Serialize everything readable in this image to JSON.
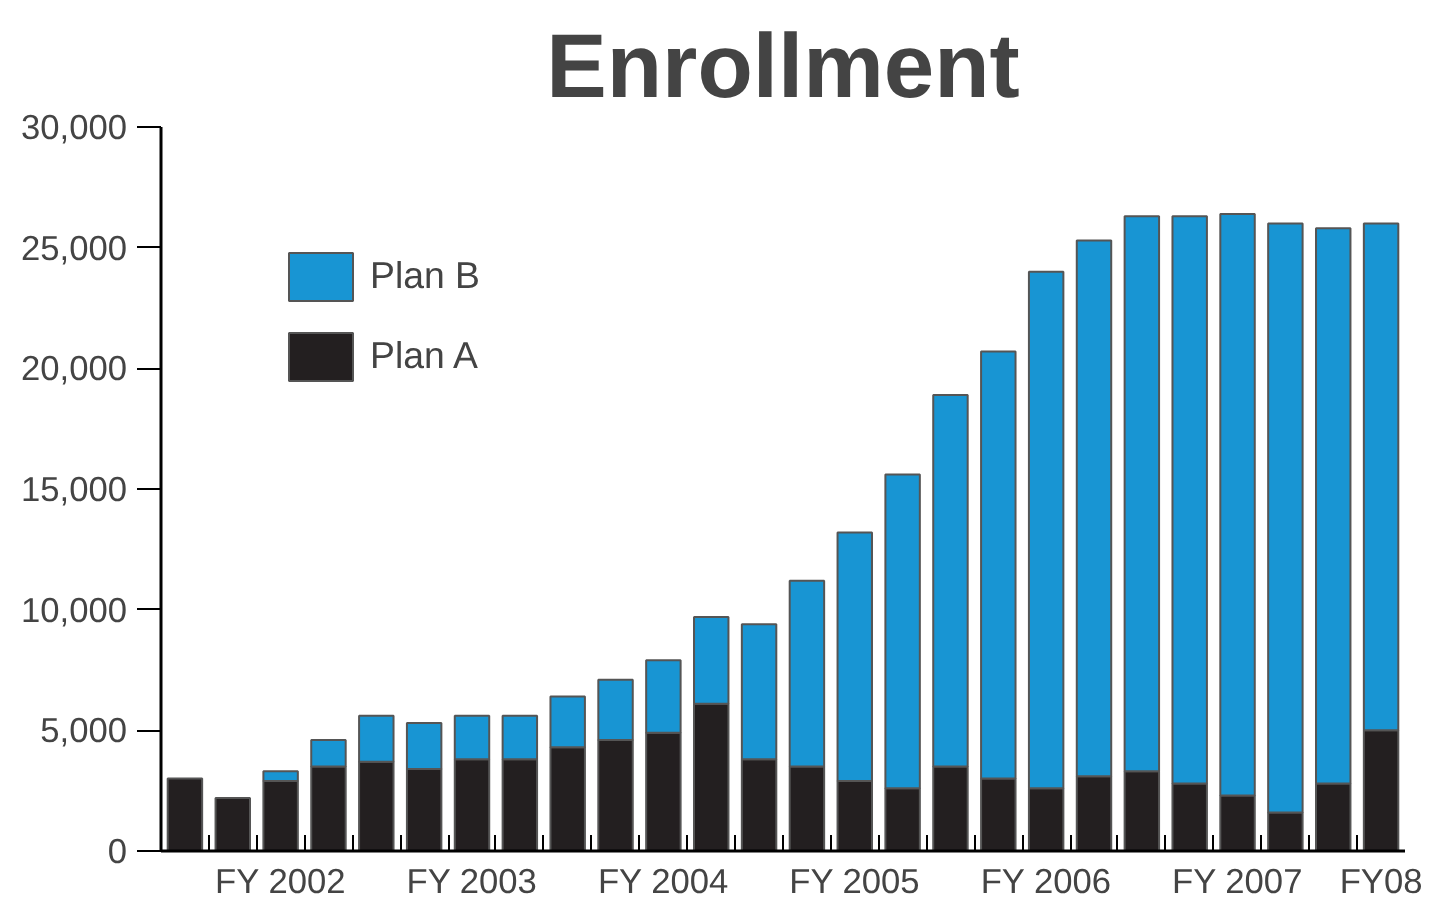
{
  "chart_data": {
    "type": "bar",
    "title": "Enrollment",
    "stacked": true,
    "categories": [
      null,
      null,
      "FY 2002",
      null,
      null,
      null,
      "FY 2003",
      null,
      null,
      null,
      "FY 2004",
      null,
      null,
      null,
      "FY 2005",
      null,
      null,
      null,
      "FY 2006",
      null,
      null,
      null,
      "FY 2007",
      null,
      null,
      "FY08"
    ],
    "series": [
      {
        "name": "Plan A",
        "color": "#231f20",
        "values": [
          3000,
          2200,
          2900,
          3500,
          3700,
          3400,
          3800,
          3800,
          4300,
          4600,
          4900,
          6100,
          3800,
          3500,
          2900,
          2600,
          3500,
          3000,
          2600,
          3100,
          3300,
          2800,
          2300,
          1600,
          2800,
          5000
        ]
      },
      {
        "name": "Plan B",
        "color": "#1895d3",
        "values": [
          null,
          null,
          400,
          1100,
          1900,
          1900,
          1800,
          1800,
          2100,
          2500,
          3000,
          3600,
          5600,
          7700,
          10300,
          13000,
          15400,
          17700,
          21400,
          22200,
          23000,
          23500,
          24100,
          24400,
          23000,
          21000
        ]
      }
    ],
    "ylim": [
      0,
      30000
    ],
    "yticks": [
      0,
      {
        "value": 5000,
        "label": "5,000"
      },
      {
        "value": 10000,
        "label": "10,000"
      },
      {
        "value": 15000,
        "label": "15,000"
      },
      {
        "value": 20000,
        "label": "20,000"
      },
      {
        "value": 25000,
        "label": "25,000"
      },
      {
        "value": 30000,
        "label": "30,000"
      }
    ],
    "legend": "top left",
    "grid": false
  }
}
